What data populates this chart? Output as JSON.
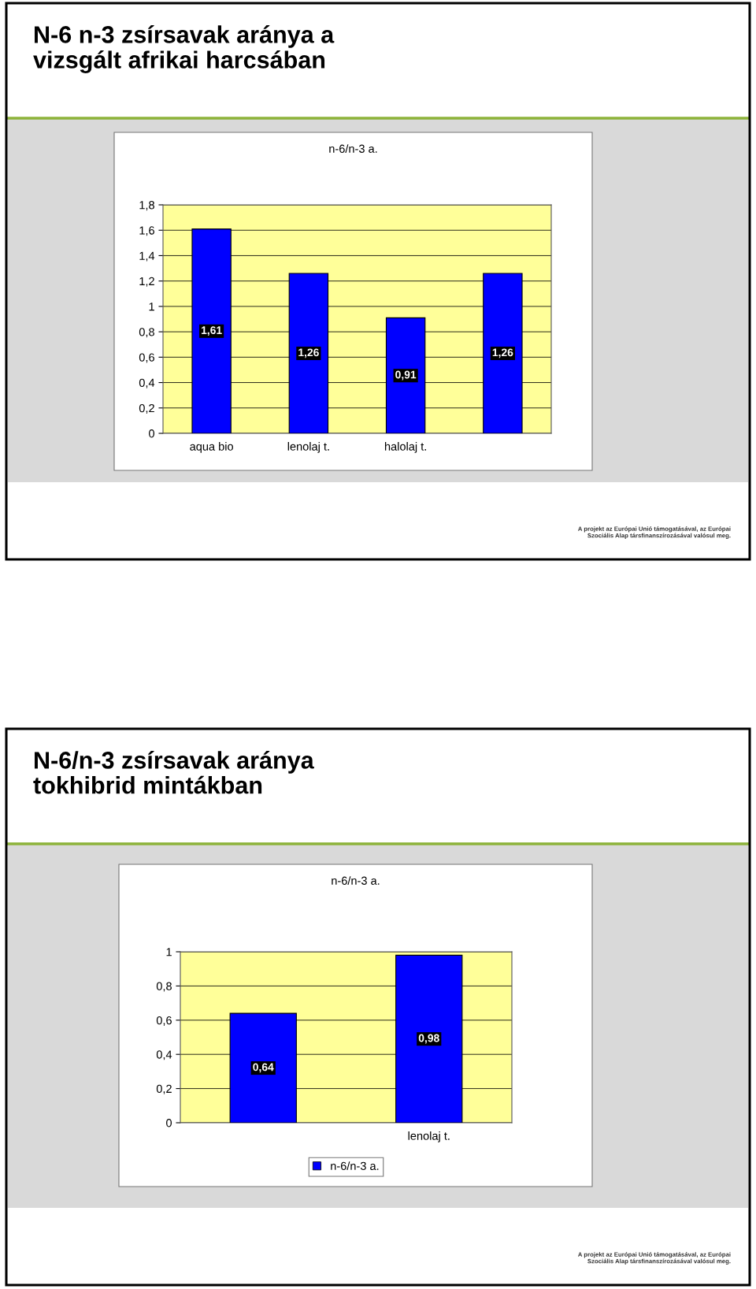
{
  "chart_data": [
    {
      "type": "bar",
      "title": "N-6 n-3 zsírsavak aránya a\nvizsgált afrikai harcsában",
      "subtitle": "n-6/n-3 a.",
      "categories": [
        "aqua bio",
        "lenolaj t.",
        "halolaj t.",
        null
      ],
      "series": [
        {
          "color": "#0000ff",
          "values": [
            1.61,
            1.26,
            0.91,
            1.26
          ],
          "value_labels": [
            "1,61",
            "1,26",
            "0,91",
            "1,26"
          ]
        }
      ],
      "ylim": [
        0,
        1.8
      ],
      "yticks": [
        0,
        {
          "value": 0.2,
          "label": "0,2"
        },
        {
          "value": 0.4,
          "label": "0,4"
        },
        {
          "value": 0.6,
          "label": "0,6"
        },
        {
          "value": 0.8,
          "label": "0,8"
        },
        1,
        {
          "value": 1.2,
          "label": "1,2"
        },
        {
          "value": 1.4,
          "label": "1,4"
        },
        {
          "value": 1.6,
          "label": "1,6"
        },
        {
          "value": 1.8,
          "label": "1,8"
        }
      ],
      "grid": "y",
      "legend": false,
      "annotations": [
        "A projekt az Európai Unió támogatásával, az Európai\nSzociális Alap társfinanszírozásával valósul meg."
      ]
    },
    {
      "type": "bar",
      "title": "N-6/n-3 zsírsavak aránya\ntokhibrid mintákban",
      "subtitle": "n-6/n-3 a.",
      "categories": [
        null,
        "lenolaj t."
      ],
      "series": [
        {
          "name": "n-6/n-3 a.",
          "color": "#0000ff",
          "values": [
            0.64,
            0.98
          ],
          "value_labels": [
            "0,64",
            "0,98"
          ]
        }
      ],
      "ylim": [
        0,
        1
      ],
      "yticks": [
        0,
        {
          "value": 0.2,
          "label": "0,2"
        },
        {
          "value": 0.4,
          "label": "0,4"
        },
        {
          "value": 0.6,
          "label": "0,6"
        },
        {
          "value": 0.8,
          "label": "0,8"
        },
        1
      ],
      "grid": "y",
      "legend": "bottom",
      "annotations": [
        "A projekt az Európai Unió támogatásával, az Európai\nSzociális Alap társfinanszírozásával valósul meg."
      ]
    }
  ]
}
